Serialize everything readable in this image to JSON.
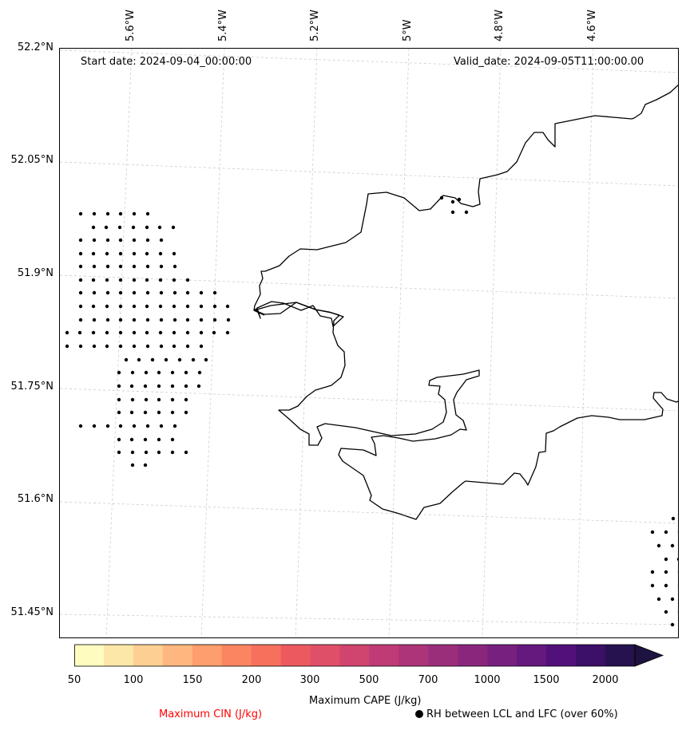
{
  "map": {
    "start_date": "Start date: 2024-09-04_00:00:00",
    "valid_date": "Valid_date: 2024-09-05T11:00:00.00",
    "lon_labels": [
      "5.6°W",
      "5.4°W",
      "5.2°W",
      "5°W",
      "4.8°W",
      "4.6°W"
    ],
    "lat_labels": [
      "52.2°N",
      "52.05°N",
      "51.9°N",
      "51.75°N",
      "51.6°N",
      "51.45°N"
    ],
    "coastline_color": "#000000",
    "grid_color": "#cccccc"
  },
  "colorbar": {
    "tick_labels": [
      "50",
      "100",
      "150",
      "200",
      "300",
      "500",
      "700",
      "1000",
      "1500",
      "2000"
    ],
    "colors": [
      "#fefdbf",
      "#fde7a8",
      "#fecf92",
      "#feb77f",
      "#fd9e6c",
      "#fa8560",
      "#f6705c",
      "#ec5a5f",
      "#e04f68",
      "#d0456f",
      "#bf3b75",
      "#ad3478",
      "#9b2e7b",
      "#8a277d",
      "#78207f",
      "#65187e",
      "#52117a",
      "#3c0f69",
      "#26124f"
    ],
    "extend_color": "#1e1240",
    "label": "Maximum CAPE (J/kg)"
  },
  "legend": {
    "cin_label": "Maximum CIN (J/kg)",
    "cin_color": "#ff0000",
    "rh_label": "RH between LCL and LFC (over 60%)"
  }
}
